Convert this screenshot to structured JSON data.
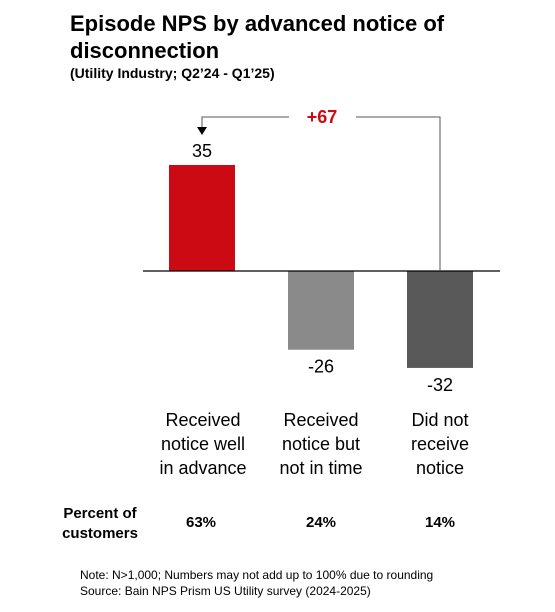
{
  "title": "Episode NPS by advanced notice of disconnection",
  "subtitle": "(Utility Industry; Q2’24 - Q1’25)",
  "chart_data": {
    "type": "bar",
    "categories": [
      "Received notice well in advance",
      "Received notice but not in time",
      "Did not receive notice"
    ],
    "values": [
      35,
      -26,
      -32
    ],
    "value_labels": [
      "35",
      "-26",
      "-32"
    ],
    "colors": [
      "#cc0a14",
      "#8a8a8a",
      "#595959"
    ],
    "difference_label": "+67",
    "difference_color": "#cc0a14",
    "ylim": [
      -40,
      40
    ]
  },
  "categories_display": [
    [
      "Received",
      "notice well",
      "in advance"
    ],
    [
      "Received",
      "notice but",
      "not in time"
    ],
    [
      "Did not",
      "receive",
      "notice"
    ]
  ],
  "percent_row": {
    "label_line1": "Percent of",
    "label_line2": "customers",
    "values": [
      "63%",
      "24%",
      "14%"
    ]
  },
  "notes": {
    "note": "Note: N>1,000; Numbers may not add up to 100% due to rounding",
    "source": "Source: Bain NPS Prism US Utility survey (2024-2025)"
  }
}
